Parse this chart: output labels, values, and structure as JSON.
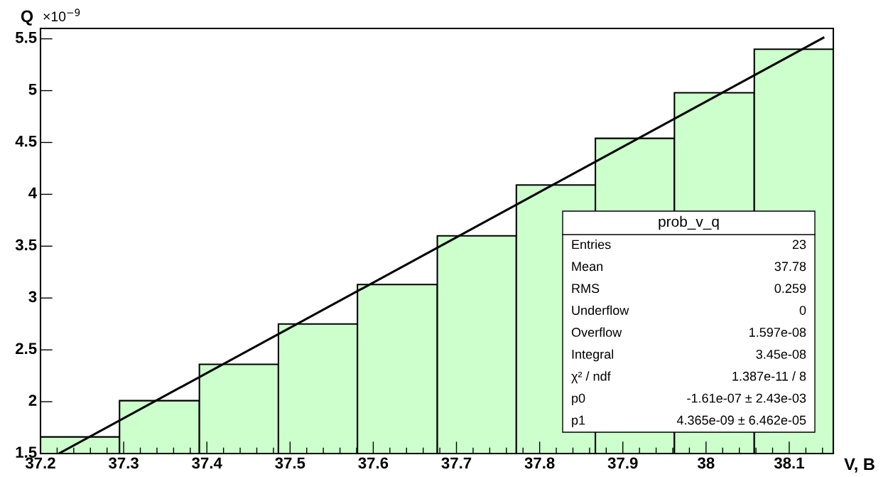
{
  "chart_data": {
    "type": "histogram",
    "ylabel": "Q",
    "xlabel": "V, B",
    "bins": [
      37.2,
      37.295,
      37.391,
      37.486,
      37.581,
      37.677,
      37.772,
      37.867,
      37.962,
      38.058,
      38.153
    ],
    "values": [
      1.66,
      2.01,
      2.36,
      2.75,
      3.13,
      3.6,
      4.09,
      4.54,
      4.98,
      5.4
    ],
    "color": "#ccffcc",
    "series": [
      {
        "type": "line",
        "x": [
          37.222,
          38.141
        ],
        "values": [
          1.5,
          5.51
        ],
        "color": "#000000"
      }
    ],
    "xlim": [
      37.2,
      38.153
    ],
    "ylim": [
      1.5,
      5.6
    ],
    "xticks": [
      37.2,
      37.3,
      37.4,
      37.5,
      37.6,
      37.7,
      37.8,
      37.9,
      38,
      38.1
    ],
    "yticks": [
      1.5,
      2,
      2.5,
      3,
      3.5,
      4,
      4.5,
      5,
      5.5
    ],
    "grid": false,
    "legend": false,
    "annotations": [
      "×10$^{−9}$",
      "prob_v_q",
      "Entries",
      "23",
      "Mean",
      "37.78",
      "RMS",
      "0.259",
      "Underflow",
      "0",
      "Overflow",
      "1.597e-08",
      "Integral",
      "3.45e-08",
      "χ² / ndf",
      "1.387e-11 / 8",
      "p0",
      "-1.61e-07 ± 2.43e-03",
      "p1",
      "4.365e-09 ± 6.462e-05"
    ]
  }
}
